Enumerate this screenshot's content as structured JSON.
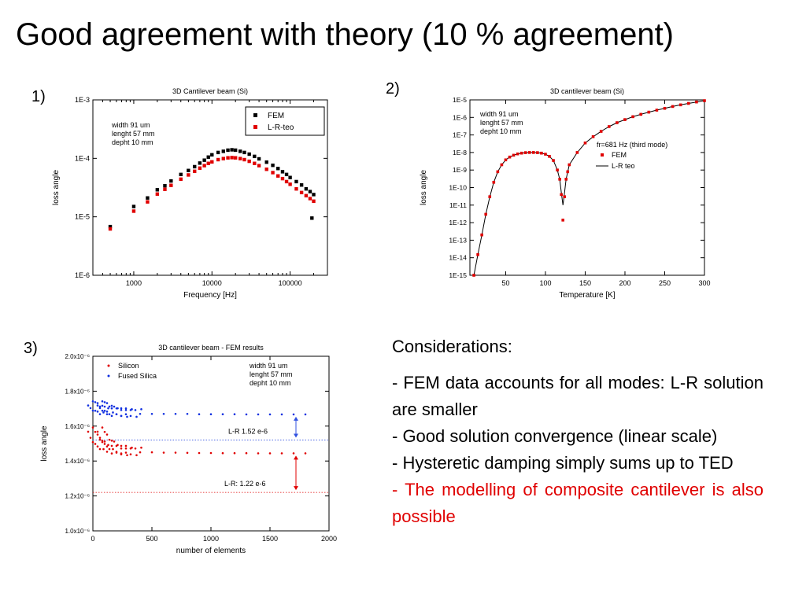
{
  "slide": {
    "title": "Good agreement with theory (10 % agreement)",
    "panel_labels": [
      "1)",
      "2)",
      "3)"
    ]
  },
  "considerations": {
    "heading": "Considerations:",
    "items": [
      "- FEM data accounts for all modes: L-R solution are smaller",
      "- Good solution convergence (linear scale)",
      "-  Hysteretic damping simply sums up to TED",
      "- The modelling of composite cantilever is also  possible"
    ],
    "highlight_color": "#e00000"
  },
  "chart_data": [
    {
      "type": "scatter",
      "title": "3D Cantilever beam (Si)",
      "xlabel": "Frequency [Hz]",
      "ylabel": "loss angle",
      "xscale": "log",
      "yscale": "log",
      "xlim": [
        300,
        300000
      ],
      "ylim": [
        1e-06,
        0.001
      ],
      "xticks": [
        "1000",
        "10000",
        "100000"
      ],
      "yticks": [
        "1E-6",
        "1E-5",
        "1E-4",
        "1E-3"
      ],
      "annotation": [
        "width  91 um",
        "lenght 57 mm",
        "depht 10 mm"
      ],
      "legend_position": "top-right",
      "series": [
        {
          "name": "FEM",
          "color": "#000000",
          "marker": "square",
          "points": [
            [
              500,
              6.8e-06
            ],
            [
              1000,
              1.5e-05
            ],
            [
              1500,
              2.1e-05
            ],
            [
              2000,
              2.9e-05
            ],
            [
              2500,
              3.4e-05
            ],
            [
              3000,
              4.1e-05
            ],
            [
              4000,
              5.3e-05
            ],
            [
              5000,
              6.2e-05
            ],
            [
              6000,
              7.2e-05
            ],
            [
              7000,
              8.3e-05
            ],
            [
              8000,
              9.3e-05
            ],
            [
              9000,
              0.000105
            ],
            [
              10000,
              0.000115
            ],
            [
              12000,
              0.000126
            ],
            [
              14000,
              0.000132
            ],
            [
              16000,
              0.000138
            ],
            [
              18000,
              0.00014
            ],
            [
              20000,
              0.000138
            ],
            [
              23000,
              0.000132
            ],
            [
              26000,
              0.000126
            ],
            [
              30000,
              0.000118
            ],
            [
              35000,
              0.000108
            ],
            [
              40000,
              9.8e-05
            ],
            [
              50000,
              8.6e-05
            ],
            [
              60000,
              7.6e-05
            ],
            [
              70000,
              6.7e-05
            ],
            [
              80000,
              5.9e-05
            ],
            [
              90000,
              5.3e-05
            ],
            [
              100000,
              4.7e-05
            ],
            [
              120000,
              4e-05
            ],
            [
              140000,
              3.5e-05
            ],
            [
              160000,
              3e-05
            ],
            [
              180000,
              2.7e-05
            ],
            [
              200000,
              2.4e-05
            ],
            [
              190000,
              9.5e-06
            ]
          ]
        },
        {
          "name": "L-R-teo",
          "color": "#e00000",
          "marker": "square",
          "points": [
            [
              500,
              6.2e-06
            ],
            [
              1000,
              1.25e-05
            ],
            [
              1500,
              1.8e-05
            ],
            [
              2000,
              2.45e-05
            ],
            [
              2500,
              2.95e-05
            ],
            [
              3000,
              3.45e-05
            ],
            [
              4000,
              4.4e-05
            ],
            [
              5000,
              5.2e-05
            ],
            [
              6000,
              6e-05
            ],
            [
              7000,
              6.8e-05
            ],
            [
              8000,
              7.5e-05
            ],
            [
              9000,
              8.2e-05
            ],
            [
              10000,
              8.7e-05
            ],
            [
              12000,
              9.5e-05
            ],
            [
              14000,
              9.9e-05
            ],
            [
              16000,
              0.000102
            ],
            [
              18000,
              0.000103
            ],
            [
              20000,
              0.000102
            ],
            [
              23000,
              9.9e-05
            ],
            [
              26000,
              9.5e-05
            ],
            [
              30000,
              8.9e-05
            ],
            [
              35000,
              8.2e-05
            ],
            [
              40000,
              7.5e-05
            ],
            [
              50000,
              6.5e-05
            ],
            [
              60000,
              5.7e-05
            ],
            [
              70000,
              5e-05
            ],
            [
              80000,
              4.5e-05
            ],
            [
              90000,
              4e-05
            ],
            [
              100000,
              3.6e-05
            ],
            [
              120000,
              3e-05
            ],
            [
              140000,
              2.6e-05
            ],
            [
              160000,
              2.3e-05
            ],
            [
              180000,
              2.05e-05
            ],
            [
              200000,
              1.85e-05
            ]
          ]
        }
      ]
    },
    {
      "type": "line",
      "title": "3D cantilever beam (Si)",
      "xlabel": "Temperature [K]",
      "ylabel": "loss angle",
      "yscale": "log",
      "xlim": [
        5,
        300
      ],
      "ylim": [
        1e-15,
        1e-05
      ],
      "xticks": [
        "50",
        "100",
        "150",
        "200",
        "250",
        "300"
      ],
      "yticks": [
        "1E-15",
        "1E-14",
        "1E-13",
        "1E-12",
        "1E-11",
        "1E-10",
        "1E-9",
        "1E-8",
        "1E-7",
        "1E-6",
        "1E-5"
      ],
      "annotation": [
        "width  91 um",
        "lenght 57 mm",
        "depht 10 mm"
      ],
      "legend_title": "fr=681 Hz (third mode)",
      "legend_position": "right",
      "series": [
        {
          "name": "FEM",
          "color": "#e00000",
          "marker": "square",
          "points": [
            [
              10,
              1e-15
            ],
            [
              15,
              1.5e-14
            ],
            [
              20,
              2e-13
            ],
            [
              25,
              3e-12
            ],
            [
              30,
              3e-11
            ],
            [
              35,
              2e-10
            ],
            [
              40,
              8e-10
            ],
            [
              45,
              2e-09
            ],
            [
              50,
              3.8e-09
            ],
            [
              55,
              5.5e-09
            ],
            [
              60,
              7e-09
            ],
            [
              65,
              8.3e-09
            ],
            [
              70,
              9.2e-09
            ],
            [
              75,
              9.8e-09
            ],
            [
              80,
              1e-08
            ],
            [
              85,
              1e-08
            ],
            [
              90,
              9.8e-09
            ],
            [
              95,
              9.2e-09
            ],
            [
              100,
              8e-09
            ],
            [
              105,
              6e-09
            ],
            [
              110,
              3.5e-09
            ],
            [
              115,
              1e-09
            ],
            [
              118,
              3e-10
            ],
            [
              120,
              4e-11
            ],
            [
              122,
              1.4e-12
            ],
            [
              124,
              3e-11
            ],
            [
              126,
              3e-10
            ],
            [
              128,
              8e-10
            ],
            [
              130,
              2e-09
            ],
            [
              140,
              1e-08
            ],
            [
              150,
              3.5e-08
            ],
            [
              160,
              8e-08
            ],
            [
              170,
              1.6e-07
            ],
            [
              180,
              3e-07
            ],
            [
              190,
              5e-07
            ],
            [
              200,
              7.5e-07
            ],
            [
              210,
              1.1e-06
            ],
            [
              220,
              1.5e-06
            ],
            [
              230,
              2e-06
            ],
            [
              240,
              2.6e-06
            ],
            [
              250,
              3.3e-06
            ],
            [
              260,
              4.2e-06
            ],
            [
              270,
              5.2e-06
            ],
            [
              280,
              6.3e-06
            ],
            [
              290,
              7.6e-06
            ],
            [
              300,
              9e-06
            ]
          ]
        },
        {
          "name": "L-R teo",
          "color": "#000000",
          "marker": "line",
          "points": [
            [
              10,
              1e-15
            ],
            [
              15,
              1.5e-14
            ],
            [
              20,
              2e-13
            ],
            [
              25,
              3e-12
            ],
            [
              30,
              3e-11
            ],
            [
              35,
              2e-10
            ],
            [
              40,
              8e-10
            ],
            [
              45,
              2e-09
            ],
            [
              50,
              3.8e-09
            ],
            [
              55,
              5.5e-09
            ],
            [
              60,
              7e-09
            ],
            [
              65,
              8.3e-09
            ],
            [
              70,
              9.2e-09
            ],
            [
              75,
              9.8e-09
            ],
            [
              80,
              1e-08
            ],
            [
              85,
              1e-08
            ],
            [
              90,
              9.8e-09
            ],
            [
              95,
              9.2e-09
            ],
            [
              100,
              8e-09
            ],
            [
              105,
              6e-09
            ],
            [
              110,
              3.5e-09
            ],
            [
              115,
              1e-09
            ],
            [
              118,
              3e-10
            ],
            [
              120,
              5e-11
            ],
            [
              122,
              1e-11
            ],
            [
              124,
              5e-11
            ],
            [
              126,
              3e-10
            ],
            [
              128,
              8e-10
            ],
            [
              130,
              2e-09
            ],
            [
              140,
              1e-08
            ],
            [
              150,
              3.5e-08
            ],
            [
              160,
              8e-08
            ],
            [
              170,
              1.6e-07
            ],
            [
              180,
              3e-07
            ],
            [
              190,
              5e-07
            ],
            [
              200,
              7.5e-07
            ],
            [
              210,
              1.1e-06
            ],
            [
              220,
              1.5e-06
            ],
            [
              230,
              2e-06
            ],
            [
              240,
              2.6e-06
            ],
            [
              250,
              3.3e-06
            ],
            [
              260,
              4.2e-06
            ],
            [
              270,
              5.2e-06
            ],
            [
              280,
              6.3e-06
            ],
            [
              290,
              7.6e-06
            ],
            [
              300,
              9e-06
            ]
          ]
        }
      ]
    },
    {
      "type": "scatter",
      "title": "3D cantilever beam  - FEM results",
      "xlabel": "number of elements",
      "ylabel": "loss angle",
      "xlim": [
        0,
        2000
      ],
      "ylim": [
        1e-06,
        2e-06
      ],
      "xticks": [
        "0",
        "500",
        "1000",
        "1500",
        "2000"
      ],
      "yticks": [
        "1.0x10⁻⁶",
        "1.2x10⁻⁶",
        "1.4x10⁻⁶",
        "1.6x10⁻⁶",
        "1.8x10⁻⁶",
        "2.0x10⁻⁶"
      ],
      "annotation": [
        "width  91 um",
        "lenght 57 mm",
        "depht 10 mm"
      ],
      "legend_position": "top-left",
      "reference_lines": [
        {
          "label": "L-R 1.52 e-6",
          "y": 1.52e-06,
          "color": "#3050e0"
        },
        {
          "label": "L-R: 1.22 e-6",
          "y": 1.22e-06,
          "color": "#e00000"
        }
      ],
      "series": [
        {
          "name": "Fused Silica",
          "color": "#1030e0",
          "marker": "dot",
          "points": [
            [
              20,
              1.73e-06
            ],
            [
              40,
              1.72e-06
            ],
            [
              60,
              1.71e-06
            ],
            [
              80,
              1.7e-06
            ],
            [
              100,
              1.7e-06
            ],
            [
              120,
              1.69e-06
            ],
            [
              150,
              1.69e-06
            ],
            [
              180,
              1.685e-06
            ],
            [
              220,
              1.68e-06
            ],
            [
              260,
              1.68e-06
            ],
            [
              300,
              1.675e-06
            ],
            [
              350,
              1.675e-06
            ],
            [
              400,
              1.67e-06
            ],
            [
              500,
              1.67e-06
            ],
            [
              600,
              1.67e-06
            ],
            [
              700,
              1.67e-06
            ],
            [
              800,
              1.67e-06
            ],
            [
              900,
              1.668e-06
            ],
            [
              1000,
              1.668e-06
            ],
            [
              1100,
              1.668e-06
            ],
            [
              1200,
              1.668e-06
            ],
            [
              1300,
              1.667e-06
            ],
            [
              1400,
              1.667e-06
            ],
            [
              1500,
              1.667e-06
            ],
            [
              1600,
              1.667e-06
            ],
            [
              1700,
              1.667e-06
            ],
            [
              1800,
              1.667e-06
            ]
          ]
        },
        {
          "name": "Silicon",
          "color": "#e00000",
          "marker": "dot",
          "points": [
            [
              20,
              1.58e-06
            ],
            [
              40,
              1.55e-06
            ],
            [
              60,
              1.53e-06
            ],
            [
              80,
              1.51e-06
            ],
            [
              100,
              1.5e-06
            ],
            [
              120,
              1.49e-06
            ],
            [
              150,
              1.48e-06
            ],
            [
              180,
              1.47e-06
            ],
            [
              220,
              1.465e-06
            ],
            [
              260,
              1.46e-06
            ],
            [
              300,
              1.455e-06
            ],
            [
              350,
              1.455e-06
            ],
            [
              400,
              1.45e-06
            ],
            [
              500,
              1.45e-06
            ],
            [
              600,
              1.448e-06
            ],
            [
              700,
              1.448e-06
            ],
            [
              800,
              1.447e-06
            ],
            [
              900,
              1.446e-06
            ],
            [
              1000,
              1.446e-06
            ],
            [
              1100,
              1.445e-06
            ],
            [
              1200,
              1.445e-06
            ],
            [
              1300,
              1.445e-06
            ],
            [
              1400,
              1.444e-06
            ],
            [
              1500,
              1.444e-06
            ],
            [
              1600,
              1.444e-06
            ],
            [
              1700,
              1.444e-06
            ],
            [
              1800,
              1.444e-06
            ]
          ]
        }
      ]
    }
  ]
}
